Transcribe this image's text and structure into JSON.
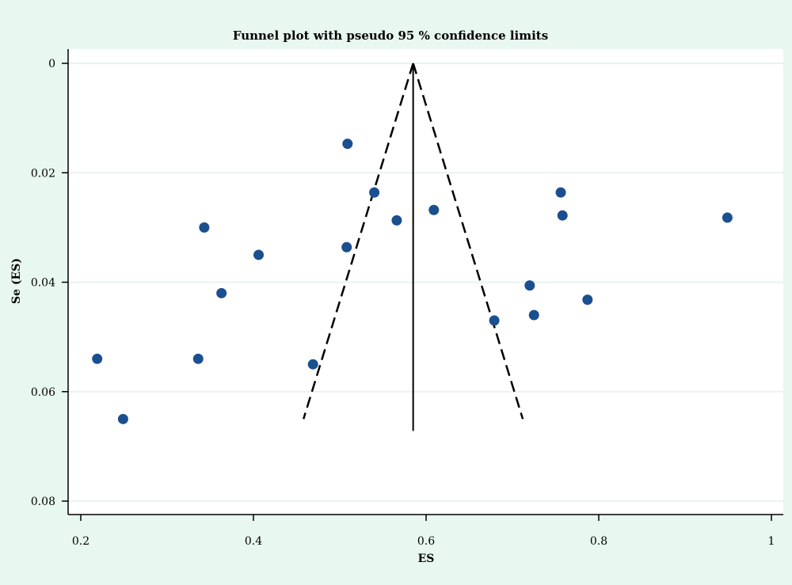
{
  "chart_data": {
    "type": "scatter",
    "title": "Funnel plot with pseudo 95 % confidence limits",
    "xlabel": "ES",
    "ylabel": "Se (ES)",
    "xlim": [
      0.2,
      1.0
    ],
    "ylim": [
      0,
      0.08
    ],
    "y_reversed": true,
    "x_ticks": [
      0.2,
      0.4,
      0.6,
      0.8,
      1
    ],
    "x_tick_labels": [
      "0.2",
      "0.4",
      "0.6",
      "0.8",
      "1"
    ],
    "y_ticks": [
      0,
      0.02,
      0.04,
      0.06,
      0.08
    ],
    "y_tick_labels": [
      "0",
      "0.02",
      "0.04",
      "0.06",
      "0.08"
    ],
    "grid": "horizontal",
    "pooled_estimate": 0.585,
    "funnel": {
      "se_max": 0.065,
      "left": [
        [
          0.585,
          0
        ],
        [
          0.458,
          0.065
        ]
      ],
      "right": [
        [
          0.585,
          0
        ],
        [
          0.712,
          0.065
        ]
      ]
    },
    "colors": {
      "background": "#e8f7ef",
      "plot_area": "#ffffff",
      "points": "#1b4f8f",
      "grid": "#e8f4ee",
      "lines": "#000000"
    },
    "points": [
      {
        "x": 0.219,
        "y": 0.054
      },
      {
        "x": 0.249,
        "y": 0.065
      },
      {
        "x": 0.336,
        "y": 0.054
      },
      {
        "x": 0.343,
        "y": 0.03
      },
      {
        "x": 0.363,
        "y": 0.042
      },
      {
        "x": 0.406,
        "y": 0.035
      },
      {
        "x": 0.469,
        "y": 0.055
      },
      {
        "x": 0.508,
        "y": 0.0336
      },
      {
        "x": 0.509,
        "y": 0.0147
      },
      {
        "x": 0.54,
        "y": 0.0236
      },
      {
        "x": 0.566,
        "y": 0.0287
      },
      {
        "x": 0.609,
        "y": 0.0268
      },
      {
        "x": 0.679,
        "y": 0.047
      },
      {
        "x": 0.72,
        "y": 0.0406
      },
      {
        "x": 0.725,
        "y": 0.046
      },
      {
        "x": 0.756,
        "y": 0.0236
      },
      {
        "x": 0.758,
        "y": 0.0278
      },
      {
        "x": 0.787,
        "y": 0.0432
      },
      {
        "x": 0.949,
        "y": 0.0282
      }
    ]
  }
}
